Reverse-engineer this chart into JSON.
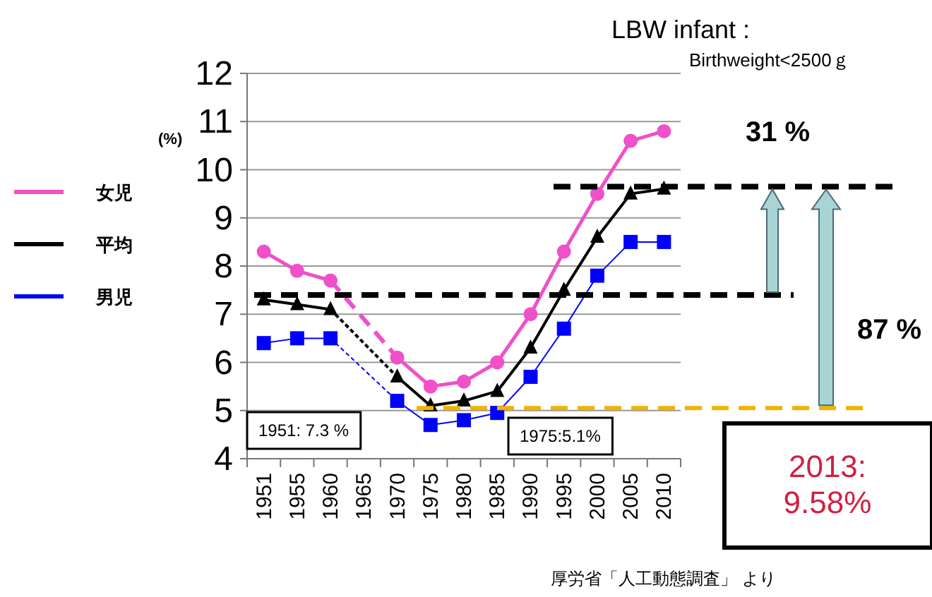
{
  "chart_data": {
    "type": "line",
    "ylabel": "(%)",
    "categories": [
      "1951",
      "1955",
      "1960",
      "1965",
      "1970",
      "1975",
      "1980",
      "1985",
      "1990",
      "1995",
      "2000",
      "2005",
      "2010"
    ],
    "series": [
      {
        "name": "女児",
        "color": "#f050c8",
        "marker": "circle",
        "values": [
          8.3,
          7.9,
          7.7,
          null,
          6.1,
          5.5,
          5.6,
          6.0,
          7.0,
          8.3,
          9.5,
          10.6,
          10.8
        ]
      },
      {
        "name": "平均",
        "color": "#000000",
        "marker": "triangle",
        "values": [
          7.3,
          7.2,
          7.1,
          null,
          5.7,
          5.1,
          5.2,
          5.4,
          6.3,
          7.5,
          8.6,
          9.5,
          9.6
        ]
      },
      {
        "name": "男児",
        "color": "#0000ff",
        "marker": "square",
        "values": [
          6.4,
          6.5,
          6.5,
          null,
          5.2,
          4.7,
          4.8,
          4.95,
          5.7,
          6.7,
          7.8,
          8.5,
          8.5
        ]
      }
    ],
    "ylim": [
      4,
      12
    ],
    "yticks": [
      4,
      5,
      6,
      7,
      8,
      9,
      10,
      11,
      12
    ],
    "grid": "y",
    "legend": "left",
    "ref_lines": [
      {
        "axis": "y",
        "value": 7.4,
        "color": "#000000",
        "line_style": "dashed"
      },
      {
        "axis": "y",
        "value": 9.65,
        "color": "#000000",
        "line_style": "dashed"
      },
      {
        "axis": "y",
        "value": 5.05,
        "color": "#f0b400",
        "line_style": "dashed"
      }
    ],
    "annotations": [
      "LBW infant :",
      "Birthweight<2500ｇ",
      "31 %",
      "87 %",
      "1951: 7.3 %",
      "1975:5.1%",
      "2013:\n9.58%",
      "厚労省「人工動態調査」 より"
    ]
  }
}
